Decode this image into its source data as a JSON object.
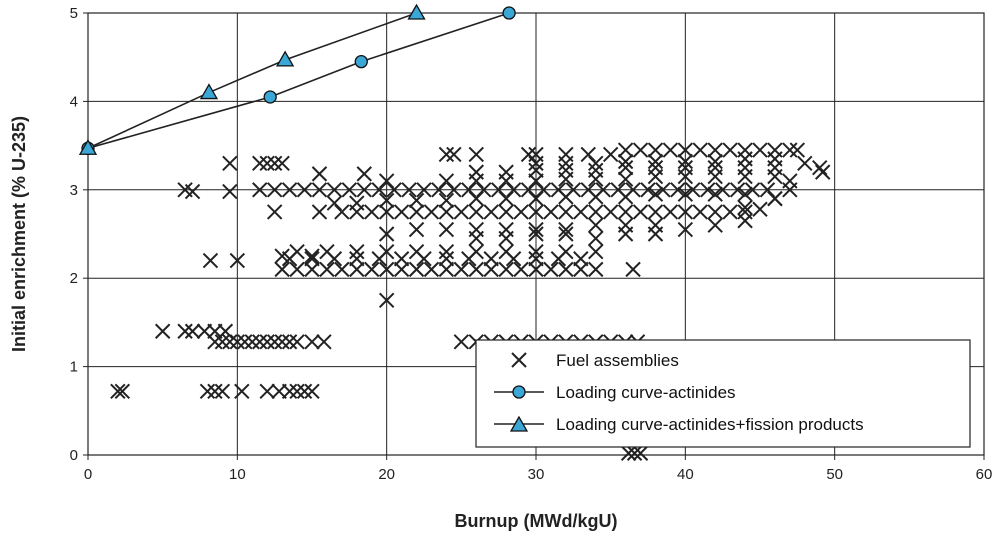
{
  "chart_data": {
    "type": "scatter",
    "title": "",
    "xlabel": "Burnup (MWd/kgU)",
    "ylabel": "Initial enrichment (% U-235)",
    "xlim": [
      0,
      60
    ],
    "ylim": [
      0,
      5
    ],
    "xticks": [
      "0",
      "10",
      "20",
      "30",
      "40",
      "50",
      "60"
    ],
    "yticks": [
      "0",
      "1",
      "2",
      "3",
      "4",
      "5"
    ],
    "grid": true,
    "legend_position": "bottom-right",
    "series": [
      {
        "name": "Fuel assemblies",
        "marker": "x",
        "color": "#222222",
        "points": [
          [
            2,
            0.72
          ],
          [
            2.3,
            0.72
          ],
          [
            8,
            0.72
          ],
          [
            8.5,
            0.72
          ],
          [
            9,
            0.72
          ],
          [
            10.3,
            0.72
          ],
          [
            12,
            0.72
          ],
          [
            12.8,
            0.72
          ],
          [
            13.5,
            0.72
          ],
          [
            14,
            0.72
          ],
          [
            14.5,
            0.72
          ],
          [
            15,
            0.72
          ],
          [
            5,
            1.4
          ],
          [
            6.5,
            1.4
          ],
          [
            7,
            1.4
          ],
          [
            7.8,
            1.4
          ],
          [
            8.5,
            1.4
          ],
          [
            9.2,
            1.4
          ],
          [
            8.5,
            1.28
          ],
          [
            9,
            1.28
          ],
          [
            9.5,
            1.28
          ],
          [
            10,
            1.28
          ],
          [
            10.5,
            1.28
          ],
          [
            11,
            1.28
          ],
          [
            11.5,
            1.28
          ],
          [
            12,
            1.28
          ],
          [
            12.5,
            1.28
          ],
          [
            13,
            1.28
          ],
          [
            13.5,
            1.28
          ],
          [
            14,
            1.28
          ],
          [
            15,
            1.28
          ],
          [
            15.8,
            1.28
          ],
          [
            25,
            1.28
          ],
          [
            26,
            1.28
          ],
          [
            27,
            1.28
          ],
          [
            28,
            1.28
          ],
          [
            29,
            1.28
          ],
          [
            30,
            1.28
          ],
          [
            31,
            1.28
          ],
          [
            32,
            1.28
          ],
          [
            33,
            1.28
          ],
          [
            34,
            1.28
          ],
          [
            35,
            1.28
          ],
          [
            36,
            1.28
          ],
          [
            36.8,
            1.28
          ],
          [
            36.2,
            0.02
          ],
          [
            36.6,
            0.02
          ],
          [
            37,
            0.02
          ],
          [
            8.2,
            2.2
          ],
          [
            10,
            2.2
          ],
          [
            13,
            2.25
          ],
          [
            15,
            2.25
          ],
          [
            20,
            1.75
          ],
          [
            36.5,
            2.1
          ],
          [
            13,
            2.1
          ],
          [
            14,
            2.1
          ],
          [
            15,
            2.1
          ],
          [
            16,
            2.1
          ],
          [
            17,
            2.1
          ],
          [
            18,
            2.1
          ],
          [
            19,
            2.1
          ],
          [
            20,
            2.1
          ],
          [
            21,
            2.1
          ],
          [
            22,
            2.1
          ],
          [
            23,
            2.1
          ],
          [
            24,
            2.1
          ],
          [
            25,
            2.1
          ],
          [
            26,
            2.1
          ],
          [
            27,
            2.1
          ],
          [
            28,
            2.1
          ],
          [
            29,
            2.1
          ],
          [
            30,
            2.1
          ],
          [
            31,
            2.1
          ],
          [
            32,
            2.1
          ],
          [
            33,
            2.1
          ],
          [
            34,
            2.1
          ],
          [
            13.5,
            2.22
          ],
          [
            15,
            2.22
          ],
          [
            16.5,
            2.22
          ],
          [
            18,
            2.22
          ],
          [
            19.5,
            2.22
          ],
          [
            21,
            2.22
          ],
          [
            22.5,
            2.22
          ],
          [
            24,
            2.22
          ],
          [
            25.5,
            2.22
          ],
          [
            27,
            2.22
          ],
          [
            28.5,
            2.22
          ],
          [
            30,
            2.22
          ],
          [
            31.5,
            2.22
          ],
          [
            33,
            2.22
          ],
          [
            14,
            2.3
          ],
          [
            16,
            2.3
          ],
          [
            18,
            2.3
          ],
          [
            20,
            2.3
          ],
          [
            22,
            2.3
          ],
          [
            24,
            2.3
          ],
          [
            26,
            2.3
          ],
          [
            28,
            2.3
          ],
          [
            30,
            2.3
          ],
          [
            32,
            2.3
          ],
          [
            34,
            2.3
          ],
          [
            20,
            2.5
          ],
          [
            22,
            2.55
          ],
          [
            24,
            2.55
          ],
          [
            26,
            2.55
          ],
          [
            28,
            2.55
          ],
          [
            30,
            2.55
          ],
          [
            32,
            2.55
          ],
          [
            34,
            2.6
          ],
          [
            36,
            2.6
          ],
          [
            38,
            2.6
          ],
          [
            17,
            2.75
          ],
          [
            18,
            2.75
          ],
          [
            19,
            2.75
          ],
          [
            20,
            2.75
          ],
          [
            21,
            2.75
          ],
          [
            22,
            2.75
          ],
          [
            23,
            2.75
          ],
          [
            24,
            2.75
          ],
          [
            25,
            2.75
          ],
          [
            26,
            2.75
          ],
          [
            27,
            2.75
          ],
          [
            28,
            2.75
          ],
          [
            29,
            2.75
          ],
          [
            30,
            2.75
          ],
          [
            31,
            2.75
          ],
          [
            32,
            2.75
          ],
          [
            33,
            2.75
          ],
          [
            34,
            2.75
          ],
          [
            35,
            2.75
          ],
          [
            36,
            2.75
          ],
          [
            37,
            2.75
          ],
          [
            38,
            2.75
          ],
          [
            39,
            2.75
          ],
          [
            40,
            2.75
          ],
          [
            41,
            2.75
          ],
          [
            42,
            2.75
          ],
          [
            43,
            2.75
          ],
          [
            44,
            2.75
          ],
          [
            12.5,
            2.75
          ],
          [
            15.5,
            2.75
          ],
          [
            16.5,
            2.85
          ],
          [
            18,
            2.85
          ],
          [
            20,
            2.88
          ],
          [
            22,
            2.88
          ],
          [
            24,
            2.88
          ],
          [
            26,
            2.9
          ],
          [
            28,
            2.9
          ],
          [
            30,
            2.9
          ],
          [
            32,
            2.92
          ],
          [
            34,
            2.92
          ],
          [
            36,
            2.92
          ],
          [
            38,
            2.95
          ],
          [
            40,
            2.95
          ],
          [
            42,
            2.95
          ],
          [
            44,
            2.95
          ],
          [
            46,
            2.9
          ],
          [
            13.5,
            3
          ],
          [
            14.5,
            3
          ],
          [
            15.5,
            3
          ],
          [
            16.5,
            3
          ],
          [
            17.5,
            3
          ],
          [
            18.5,
            3
          ],
          [
            19.5,
            3
          ],
          [
            20.5,
            3
          ],
          [
            21.5,
            3
          ],
          [
            22.5,
            3
          ],
          [
            23.5,
            3
          ],
          [
            24.5,
            3
          ],
          [
            25.5,
            3
          ],
          [
            26.5,
            3
          ],
          [
            27.5,
            3
          ],
          [
            28.5,
            3
          ],
          [
            29.5,
            3
          ],
          [
            30.5,
            3
          ],
          [
            31.5,
            3
          ],
          [
            32.5,
            3
          ],
          [
            33.5,
            3
          ],
          [
            34.5,
            3
          ],
          [
            35.5,
            3
          ],
          [
            36.5,
            3
          ],
          [
            37.5,
            3
          ],
          [
            38.5,
            3
          ],
          [
            39.5,
            3
          ],
          [
            40.5,
            3
          ],
          [
            41.5,
            3
          ],
          [
            42.5,
            3
          ],
          [
            43.5,
            3
          ],
          [
            44.5,
            3
          ],
          [
            45.5,
            3
          ],
          [
            6.5,
            3
          ],
          [
            7,
            2.98
          ],
          [
            9.5,
            2.98
          ],
          [
            11.5,
            3
          ],
          [
            12.5,
            3
          ],
          [
            24,
            3.1
          ],
          [
            26,
            3.1
          ],
          [
            28,
            3.1
          ],
          [
            30,
            3.1
          ],
          [
            32,
            3.12
          ],
          [
            34,
            3.12
          ],
          [
            36,
            3.12
          ],
          [
            38,
            3.15
          ],
          [
            40,
            3.15
          ],
          [
            42,
            3.15
          ],
          [
            44,
            3.15
          ],
          [
            46,
            3.15
          ],
          [
            47,
            3.1
          ],
          [
            26,
            3.2
          ],
          [
            28,
            3.2
          ],
          [
            30,
            3.22
          ],
          [
            32,
            3.22
          ],
          [
            34,
            3.22
          ],
          [
            36,
            3.25
          ],
          [
            38,
            3.25
          ],
          [
            40,
            3.25
          ],
          [
            42,
            3.25
          ],
          [
            44,
            3.25
          ],
          [
            46,
            3.25
          ],
          [
            9.5,
            3.3
          ],
          [
            11.5,
            3.3
          ],
          [
            12,
            3.3
          ],
          [
            12.5,
            3.3
          ],
          [
            13,
            3.3
          ],
          [
            15.5,
            3.18
          ],
          [
            18.5,
            3.18
          ],
          [
            20,
            3.1
          ],
          [
            30,
            3.3
          ],
          [
            32,
            3.3
          ],
          [
            34,
            3.3
          ],
          [
            36,
            3.32
          ],
          [
            38,
            3.32
          ],
          [
            40,
            3.32
          ],
          [
            42,
            3.32
          ],
          [
            44,
            3.35
          ],
          [
            46,
            3.35
          ],
          [
            24,
            3.4
          ],
          [
            24.5,
            3.4
          ],
          [
            26,
            3.4
          ],
          [
            29.5,
            3.4
          ],
          [
            30,
            3.4
          ],
          [
            32,
            3.4
          ],
          [
            33.5,
            3.4
          ],
          [
            35,
            3.4
          ],
          [
            36,
            3.45
          ],
          [
            37,
            3.45
          ],
          [
            38,
            3.45
          ],
          [
            39,
            3.45
          ],
          [
            40,
            3.45
          ],
          [
            41,
            3.45
          ],
          [
            42,
            3.45
          ],
          [
            43,
            3.45
          ],
          [
            44,
            3.45
          ],
          [
            45,
            3.45
          ],
          [
            46,
            3.45
          ],
          [
            47,
            3.45
          ],
          [
            47.5,
            3.45
          ],
          [
            44,
            2.8
          ],
          [
            45,
            2.78
          ],
          [
            46,
            2.9
          ],
          [
            47,
            3.0
          ],
          [
            48,
            3.3
          ],
          [
            49,
            3.25
          ],
          [
            49.2,
            3.2
          ],
          [
            26,
            2.45
          ],
          [
            28,
            2.45
          ],
          [
            30,
            2.5
          ],
          [
            32,
            2.5
          ],
          [
            34,
            2.45
          ],
          [
            36,
            2.5
          ],
          [
            38,
            2.5
          ],
          [
            40,
            2.55
          ],
          [
            42,
            2.6
          ],
          [
            44,
            2.65
          ]
        ]
      },
      {
        "name": "Loading curve-actinides",
        "marker": "circle",
        "color": "#3aa7d6",
        "points": [
          [
            0,
            3.47
          ],
          [
            12.2,
            4.05
          ],
          [
            18.3,
            4.45
          ],
          [
            28.2,
            5.0
          ]
        ]
      },
      {
        "name": "Loading curve-actinides+fission products",
        "marker": "triangle",
        "color": "#3aa7d6",
        "points": [
          [
            0,
            3.47
          ],
          [
            8.1,
            4.1
          ],
          [
            13.2,
            4.47
          ],
          [
            22,
            5.0
          ]
        ]
      }
    ]
  }
}
